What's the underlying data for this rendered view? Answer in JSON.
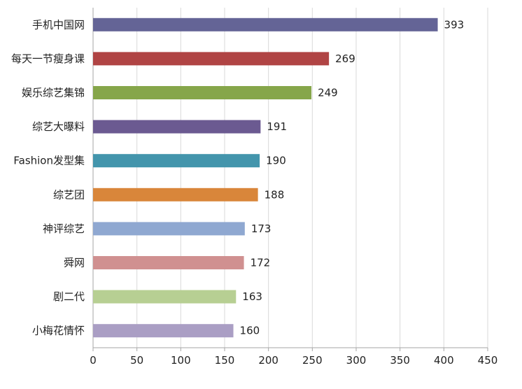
{
  "chart_data": {
    "type": "bar",
    "orientation": "horizontal",
    "categories": [
      "手机中国网",
      "每天一节瘦身课",
      "娱乐综艺集锦",
      "综艺大曝料",
      "Fashion发型集",
      "综艺团",
      "神评综艺",
      "舜网",
      "剧二代",
      "小梅花情怀"
    ],
    "values": [
      393,
      269,
      249,
      191,
      190,
      188,
      173,
      172,
      163,
      160
    ],
    "colors": [
      "#646496",
      "#b04444",
      "#86a64a",
      "#6b5a91",
      "#4395ac",
      "#d9863a",
      "#8fa8d1",
      "#d09090",
      "#b7cf93",
      "#aa9ec4"
    ],
    "xlim": [
      0,
      450
    ],
    "xticks": [
      0,
      50,
      100,
      150,
      200,
      250,
      300,
      350,
      400,
      450
    ],
    "grid": true,
    "legend": "none",
    "title": "",
    "xlabel": "",
    "ylabel": ""
  }
}
